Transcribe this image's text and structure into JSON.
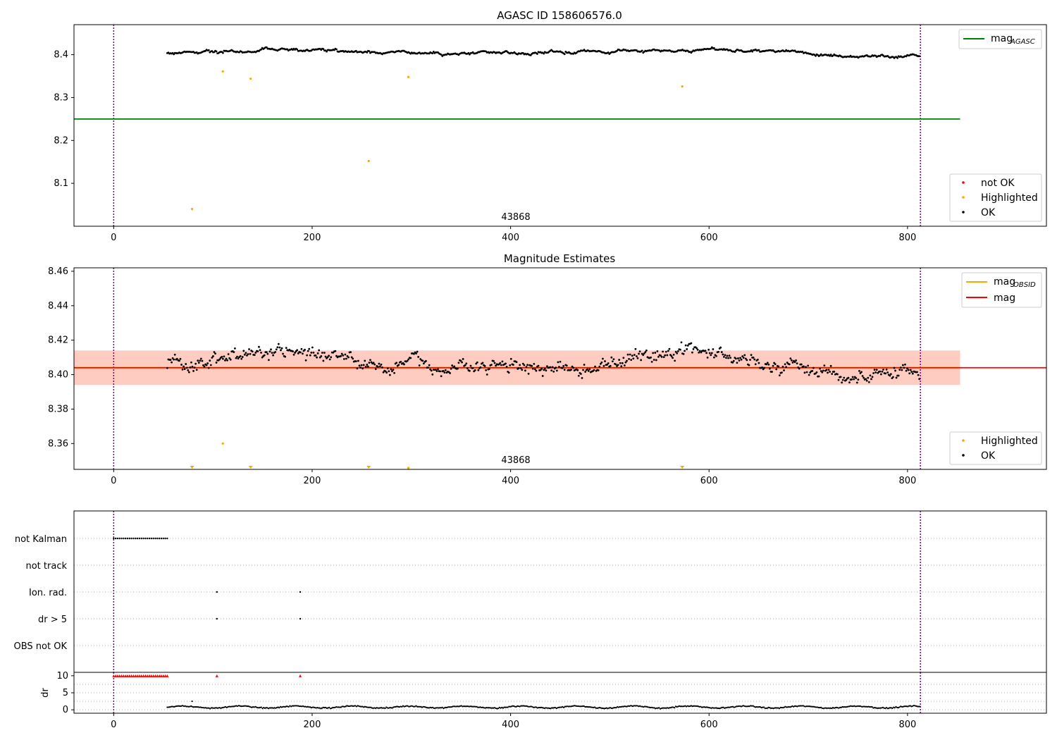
{
  "chart_data": [
    {
      "type": "scatter",
      "title": "AGASC ID 158606576.0",
      "annotation": "43868",
      "xlim": [
        -40,
        940
      ],
      "ylim": [
        8.0,
        8.47
      ],
      "xticks": [
        0,
        200,
        400,
        600,
        800
      ],
      "yticks": [
        8.1,
        8.2,
        8.3,
        8.4
      ],
      "ytick_labels": [
        "8.1",
        "8.2",
        "8.3",
        "8.4"
      ],
      "vlines": [
        0,
        813
      ],
      "hline": {
        "y": 8.25,
        "x_range": [
          -40,
          853
        ],
        "color": "#008000"
      },
      "line_legend": [
        {
          "label": "mag",
          "sub": "AGASC",
          "color": "#008000"
        }
      ],
      "legend": [
        {
          "label": "not OK",
          "color": "#ff0000"
        },
        {
          "label": "Highlighted",
          "color": "#ffa500"
        },
        {
          "label": "OK",
          "color": "#000000"
        }
      ],
      "ok_points": {
        "x_range": [
          54,
          813
        ],
        "mean": 8.404,
        "amplitude": 0.009,
        "noise": 0.004
      },
      "highlighted": [
        [
          79,
          8.04
        ],
        [
          110,
          8.361
        ],
        [
          138,
          8.344
        ],
        [
          257,
          8.152
        ],
        [
          297,
          8.348
        ],
        [
          573,
          8.326
        ]
      ]
    },
    {
      "type": "scatter",
      "title": "Magnitude Estimates",
      "annotation": "43868",
      "xlim": [
        -40,
        940
      ],
      "ylim": [
        8.345,
        8.462
      ],
      "xticks": [
        0,
        200,
        400,
        600,
        800
      ],
      "yticks": [
        8.36,
        8.38,
        8.4,
        8.42,
        8.44,
        8.46
      ],
      "ytick_labels": [
        "8.36",
        "8.38",
        "8.40",
        "8.42",
        "8.44",
        "8.46"
      ],
      "vlines": [
        0,
        813
      ],
      "mag": 8.404,
      "band_outer": [
        8.394,
        8.414
      ],
      "band_inner": [
        8.394,
        8.414
      ],
      "band_x_range": [
        -40,
        853
      ],
      "line_legend": [
        {
          "label": "mag",
          "sub": "OBSID",
          "color": "#ffa500"
        },
        {
          "label": "mag",
          "sub": "",
          "color": "#ff0000"
        }
      ],
      "legend": [
        {
          "label": "Highlighted",
          "color": "#ffa500"
        },
        {
          "label": "OK",
          "color": "#000000"
        }
      ],
      "ok_points": {
        "x_range": [
          54,
          813
        ],
        "mean": 8.404,
        "amplitude": 0.009,
        "noise": 0.006
      },
      "highlighted": [
        [
          110,
          8.36
        ]
      ],
      "off_scale_markers": [
        79,
        138,
        257,
        573
      ],
      "clipped_point": 297
    },
    {
      "type": "scatter",
      "xlim": [
        -40,
        940
      ],
      "categories": [
        "not Kalman",
        "not track",
        "Ion. rad.",
        "dr > 5",
        "OBS not OK"
      ],
      "vlines": [
        0,
        813
      ],
      "not_kalman_range": [
        0,
        54
      ],
      "ion_rad_x": [
        104,
        188
      ],
      "dr_gt5_x": [
        104,
        188
      ]
    },
    {
      "type": "scatter",
      "ylabel": "dr",
      "xlim": [
        -40,
        940
      ],
      "ylim": [
        -1,
        11
      ],
      "xticks": [
        0,
        200,
        400,
        600,
        800
      ],
      "yticks": [
        0,
        5,
        10
      ],
      "ytick_labels": [
        "0",
        "5",
        "10"
      ],
      "vlines": [
        0,
        813
      ],
      "capped_value": 10,
      "capped_range": [
        0,
        54
      ],
      "capped_extra": [
        104,
        188
      ],
      "dr_points": {
        "x_range": [
          54,
          813
        ],
        "mean": 0.8,
        "spread": 0.5
      },
      "dr_outlier": [
        79,
        2.5
      ]
    }
  ]
}
